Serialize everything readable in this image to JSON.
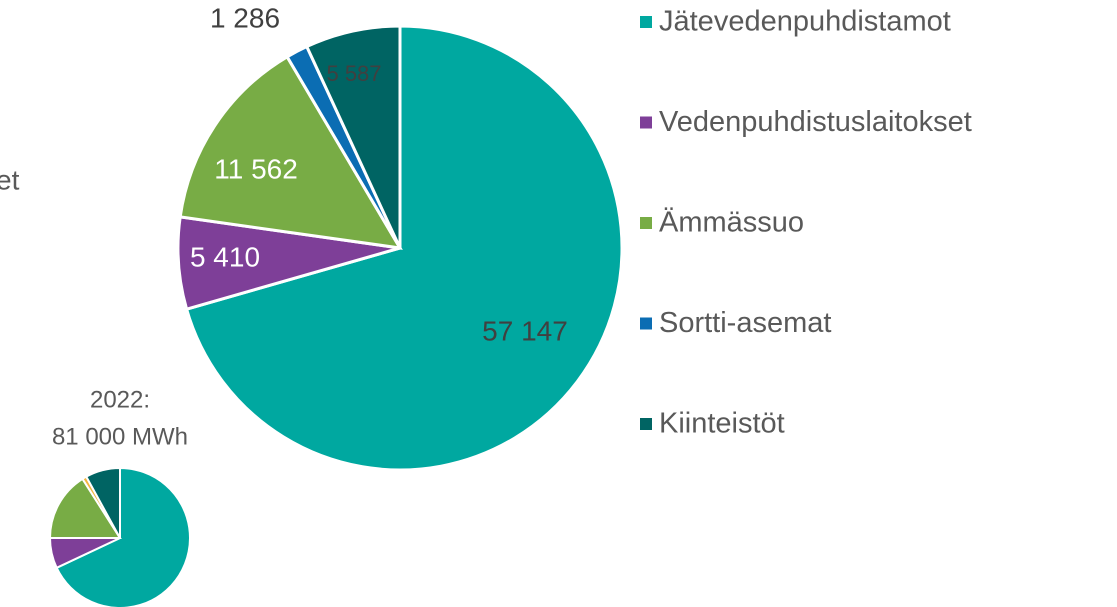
{
  "chart_data": [
    {
      "type": "pie",
      "categories": [
        "Jätevedenpuhdistamot",
        "Vedenpuhdistuslaitokset",
        "Ämmässuo",
        "Sortti-asemat",
        "Kiinteistöt"
      ],
      "values": [
        57147,
        5410,
        11562,
        1286,
        5587
      ],
      "value_labels": [
        "57 147",
        "5 410",
        "11 562",
        "1 286",
        "5 587"
      ],
      "colors": [
        "#00a8a0",
        "#7e3f98",
        "#78ac45",
        "#0b6db3",
        "#006463"
      ],
      "legend": "right"
    },
    {
      "type": "pie",
      "annotation": [
        "2022:",
        "81 000 MWh"
      ],
      "values": [
        68,
        7,
        16,
        1,
        8
      ],
      "colors": [
        "#00a8a0",
        "#7e3f98",
        "#78ac45",
        "#f2b642",
        "#006463"
      ],
      "partial_label": "et"
    }
  ]
}
